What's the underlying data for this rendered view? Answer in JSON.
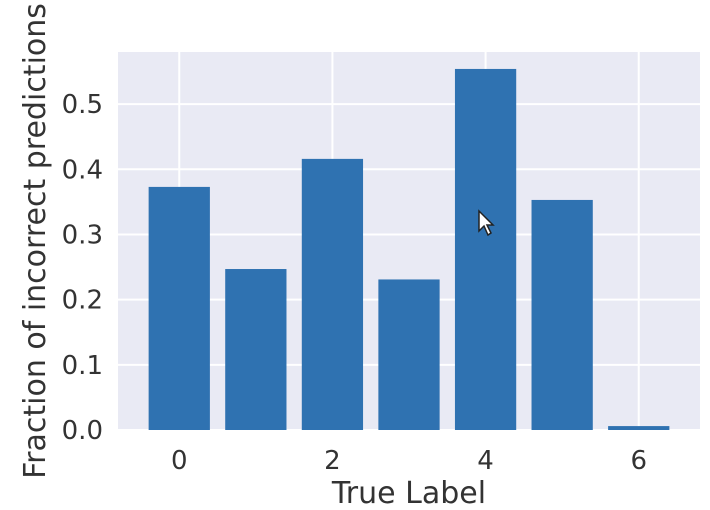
{
  "chart_data": {
    "type": "bar",
    "categories": [
      0,
      1,
      2,
      3,
      4,
      5,
      6
    ],
    "values": [
      0.373,
      0.247,
      0.416,
      0.231,
      0.554,
      0.353,
      0.006
    ],
    "xlabel": "True Label",
    "ylabel": "Fraction of incorrect predictions",
    "xticks": [
      0,
      2,
      4,
      6
    ],
    "xtick_labels": [
      "0",
      "2",
      "4",
      "6"
    ],
    "yticks": [
      0.0,
      0.1,
      0.2,
      0.3,
      0.4,
      0.5
    ],
    "ytick_labels": [
      "0.0",
      "0.1",
      "0.2",
      "0.3",
      "0.4",
      "0.5"
    ],
    "xlim": [
      -0.8,
      6.8
    ],
    "ylim": [
      0,
      0.58
    ],
    "grid": true,
    "bar_color": "#2f72b1",
    "plot_background": "#e9eaf4",
    "grid_color": "#ffffff"
  }
}
